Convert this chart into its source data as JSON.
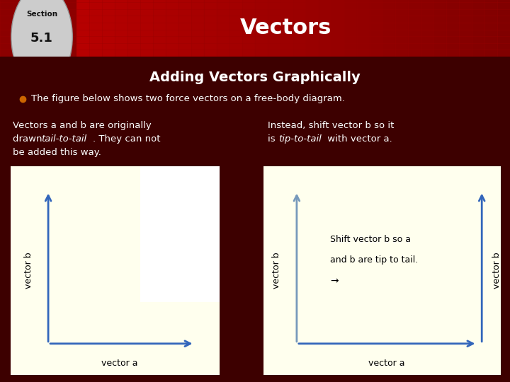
{
  "title": "Vectors",
  "section_label": "Section",
  "section_number": "5.1",
  "main_bg": "#3d0000",
  "subtitle": "Adding Vectors Graphically",
  "subtitle_color": "#ffffff",
  "bullet_color": "#cc6600",
  "bullet_text": "The figure below shows two force vectors on a free-body diagram.",
  "bullet_text_color": "#ffffff",
  "left_desc_line1": "Vectors a and b are originally",
  "left_desc_line2a": "drawn ",
  "left_desc_line2b": "tail-to-tail",
  "left_desc_line2c": ". They can not",
  "left_desc_line3": "be added this way.",
  "right_desc_line1": "Instead, shift vector b so it",
  "right_desc_line2a": "is ",
  "right_desc_line2b": "tip-to-tail",
  "right_desc_line2c": " with vector a.",
  "desc_text_color": "#ffffff",
  "diagram_bg": "#ffffee",
  "vector_color": "#3366bb",
  "vector_color_light": "#7799bb",
  "right_inner_text_line1": "Shift vector b so a",
  "right_inner_text_line2": "and b are tip to tail.",
  "right_inner_arrow": "→",
  "white_box_color": "#ffffff"
}
